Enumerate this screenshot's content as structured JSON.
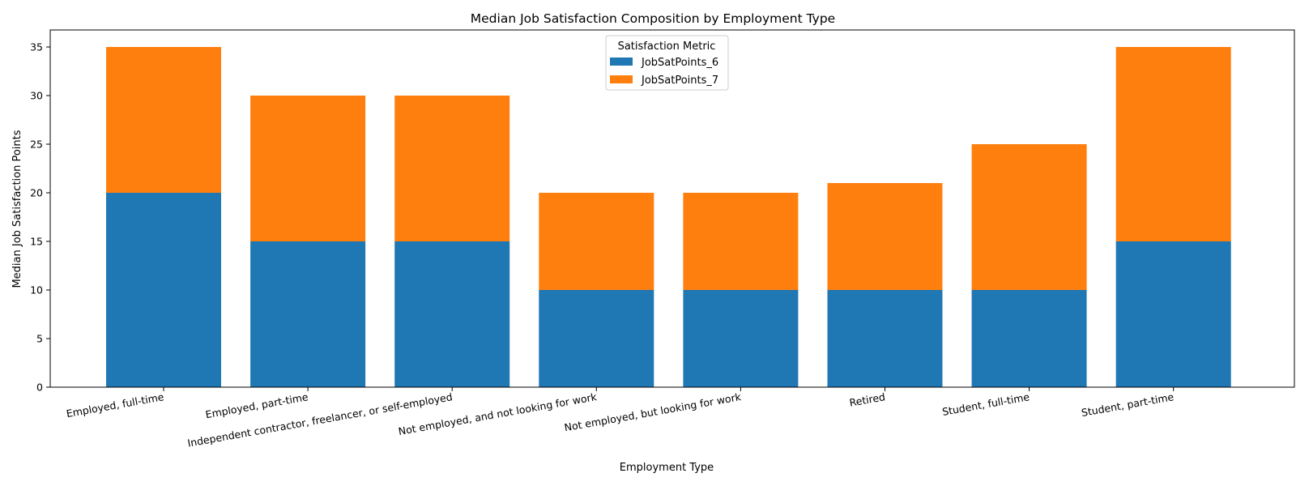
{
  "chart_data": {
    "type": "bar",
    "stacked": true,
    "title": "Median Job Satisfaction Composition by Employment Type",
    "xlabel": "Employment Type",
    "ylabel": "Median Job Satisfaction Points",
    "ylim": [
      0,
      36.75
    ],
    "yticks": [
      0,
      5,
      10,
      15,
      20,
      25,
      30,
      35
    ],
    "grid": false,
    "legend": {
      "title": "Satisfaction Metric",
      "placement": "top-center"
    },
    "categories": [
      "Employed, full-time",
      "Employed, part-time",
      "Independent contractor, freelancer, or self-employed",
      "Not employed, and not looking for work",
      "Not employed, but looking for work",
      "Retired",
      "Student, full-time",
      "Student, part-time"
    ],
    "series": [
      {
        "name": "JobSatPoints_6",
        "color": "#1f77b4",
        "values": [
          20,
          15,
          15,
          10,
          10,
          10,
          10,
          15
        ]
      },
      {
        "name": "JobSatPoints_7",
        "color": "#ff7f0e",
        "values": [
          15,
          15,
          15,
          10,
          10,
          11,
          15,
          20
        ]
      }
    ]
  }
}
